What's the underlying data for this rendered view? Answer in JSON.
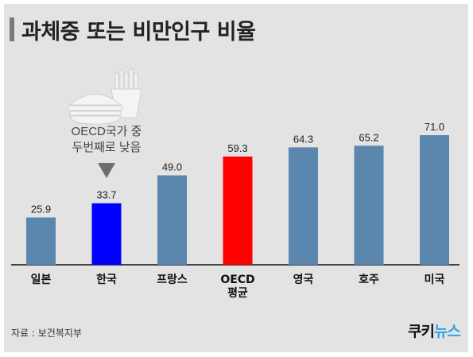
{
  "title": "과체중 또는 비만인구 비율",
  "source": "자료 : 보건복지부",
  "logo": {
    "part1": "쿠키",
    "part2": "뉴스"
  },
  "annotation": {
    "line1": "OECD국가 중",
    "line2": "두번째로 낮음"
  },
  "colors": {
    "default_bar": "#5b86ad",
    "korea_bar": "#0000ff",
    "oecd_bar": "#ff0000",
    "background": "#e3e3e3",
    "logo_accent": "#2fa4e7"
  },
  "chart_data": {
    "type": "bar",
    "title": "과체중 또는 비만인구 비율",
    "categories": [
      "일본",
      "한국",
      "프랑스",
      "OECD\n평균",
      "영국",
      "호주",
      "미국"
    ],
    "values": [
      25.9,
      33.7,
      49.0,
      59.3,
      64.3,
      65.2,
      71.0
    ],
    "value_labels": [
      "25.9",
      "33.7",
      "49.0",
      "59.3",
      "64.3",
      "65.2",
      "71.0"
    ],
    "bar_colors": [
      "#5b86ad",
      "#0000ff",
      "#5b86ad",
      "#ff0000",
      "#5b86ad",
      "#5b86ad",
      "#5b86ad"
    ],
    "ylim": [
      0,
      71.0
    ],
    "grid": false,
    "xlabel": "",
    "ylabel": ""
  }
}
